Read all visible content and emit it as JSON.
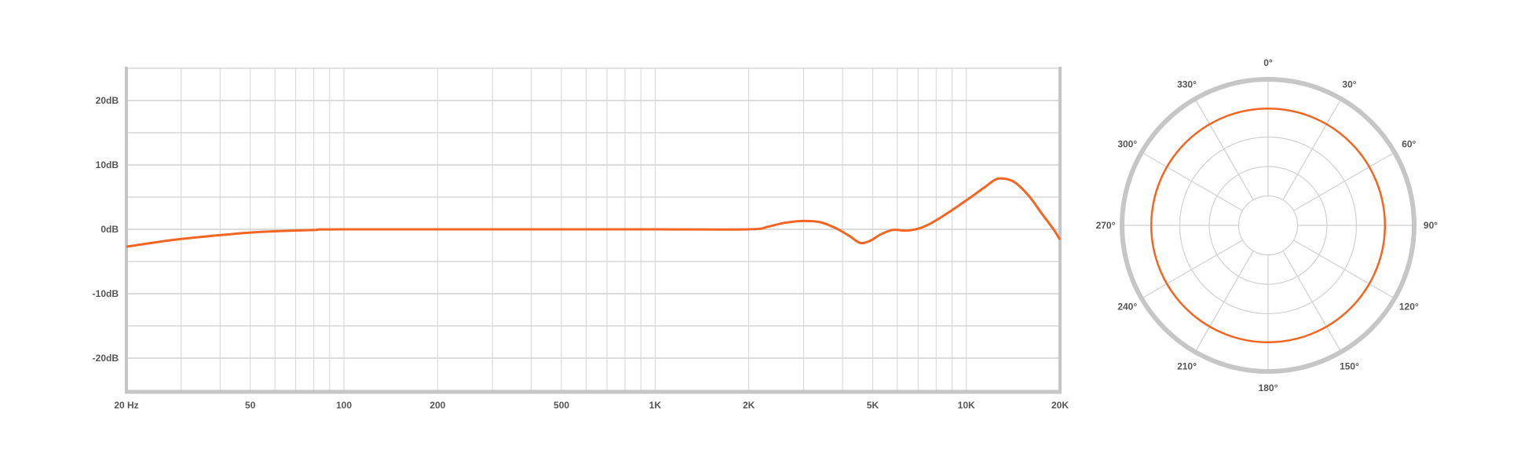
{
  "chart_data": [
    {
      "type": "line",
      "scale_x": "log",
      "xlim": [
        20,
        20000
      ],
      "ylim": [
        -25,
        25
      ],
      "grid": true,
      "x_ticks": [
        20,
        50,
        100,
        200,
        500,
        1000,
        2000,
        5000,
        10000,
        20000
      ],
      "x_tick_labels": [
        "20 Hz",
        "50",
        "100",
        "200",
        "500",
        "1K",
        "2K",
        "5K",
        "10K",
        "20K"
      ],
      "y_ticks": [
        20,
        10,
        0,
        -10,
        -20
      ],
      "y_tick_labels": [
        "20dB",
        "10dB",
        "0dB",
        "-10dB",
        "-20dB"
      ],
      "color": "#f26522",
      "series": [
        {
          "x": [
            20,
            25,
            30,
            40,
            50,
            60,
            80,
            100,
            500,
            1000,
            2000,
            2300,
            2600,
            3000,
            3400,
            3800,
            4200,
            4550,
            4900,
            5300,
            5800,
            6400,
            7000,
            7600,
            8500,
            10000,
            11500,
            12500,
            13500,
            14500,
            16000,
            17500,
            19000,
            20000
          ],
          "y": [
            -2.7,
            -2.0,
            -1.5,
            -0.9,
            -0.5,
            -0.3,
            -0.1,
            0,
            0,
            0,
            0,
            0.4,
            1.0,
            1.3,
            1.1,
            0.2,
            -1.0,
            -2.1,
            -1.8,
            -0.8,
            -0.1,
            -0.2,
            0.1,
            0.8,
            2.2,
            4.5,
            6.6,
            7.8,
            7.8,
            7.1,
            5.0,
            2.4,
            0.1,
            -1.6
          ]
        }
      ]
    },
    {
      "type": "polar",
      "pattern": "omnidirectional",
      "angle_ticks": [
        0,
        30,
        60,
        90,
        120,
        150,
        180,
        210,
        240,
        270,
        300,
        330
      ],
      "angle_labels": [
        "0°",
        "30°",
        "60°",
        "90°",
        "120°",
        "150°",
        "180°",
        "210°",
        "240°",
        "270°",
        "300°",
        "330°"
      ],
      "response_level": 0.8,
      "color": "#f26522"
    }
  ]
}
